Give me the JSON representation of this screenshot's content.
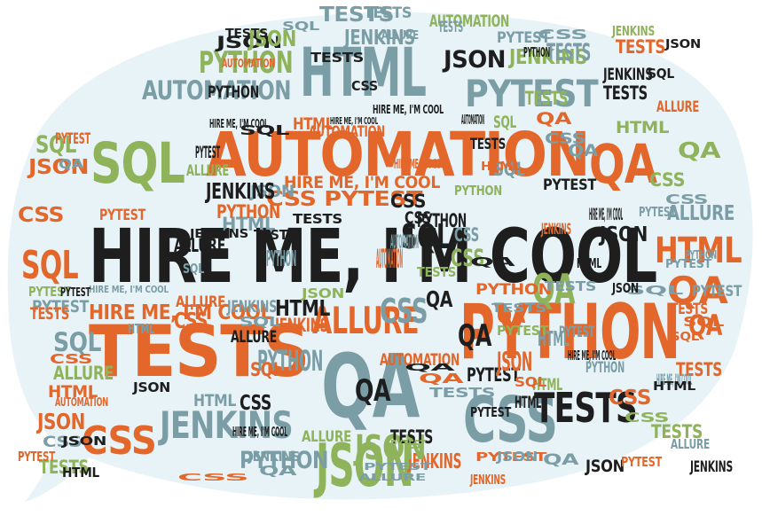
{
  "colors": {
    "bubble": "#e8f3f8",
    "black": "#1e1e1e",
    "orange": "#e3672a",
    "slate": "#7b9ea6",
    "green": "#8fb35a"
  },
  "words": [
    {
      "text": "HIRE ME, I'M COOL",
      "color": "black"
    },
    {
      "text": "AUTOMATION",
      "color": "orange"
    },
    {
      "text": "PYTHON",
      "color": "orange"
    },
    {
      "text": "TESTS",
      "color": "orange"
    },
    {
      "text": "HTML",
      "color": "slate"
    },
    {
      "text": "SQL",
      "color": "green"
    },
    {
      "text": "QA",
      "color": "slate"
    },
    {
      "text": "JSON",
      "color": "green"
    },
    {
      "text": "CSS",
      "color": "slate"
    },
    {
      "text": "JENKINS",
      "color": "slate"
    },
    {
      "text": "PYTEST",
      "color": "slate"
    },
    {
      "text": "QA",
      "color": "orange"
    },
    {
      "text": "HTML",
      "color": "orange"
    },
    {
      "text": "JSON",
      "color": "black"
    },
    {
      "text": "CSS",
      "color": "orange"
    },
    {
      "text": "SQL",
      "color": "orange"
    },
    {
      "text": "TESTS",
      "color": "black"
    },
    {
      "text": "ALLURE",
      "color": "orange"
    },
    {
      "text": "HIRE ME, I'M COOL",
      "color": "orange"
    },
    {
      "text": "CSS PYTEST",
      "color": "orange"
    },
    {
      "text": "HIRE ME, I'M COOL",
      "color": "orange"
    },
    {
      "text": "PYTHON",
      "color": "green"
    },
    {
      "text": "AUTOMATION",
      "color": "slate"
    },
    {
      "text": "JENKINS",
      "color": "green"
    },
    {
      "text": "JSON",
      "color": "slate"
    },
    {
      "text": "ALLURE",
      "color": "slate"
    },
    {
      "text": "SQL",
      "color": "green"
    },
    {
      "text": "QA",
      "color": "green"
    },
    {
      "text": "QA",
      "color": "orange"
    },
    {
      "text": "CSS",
      "color": "slate"
    },
    {
      "text": "JSON",
      "color": "black"
    },
    {
      "text": "JENKINS",
      "color": "black"
    },
    {
      "text": "TESTS",
      "color": "slate"
    },
    {
      "text": "PYTHON",
      "color": "slate"
    },
    {
      "text": "AUTOMATION",
      "color": "orange"
    },
    {
      "text": "ALLURE",
      "color": "green"
    },
    {
      "text": "SQL",
      "color": "slate"
    },
    {
      "text": "PYTEST",
      "color": "slate"
    },
    {
      "text": "CSS",
      "color": "orange"
    },
    {
      "text": "JSON",
      "color": "orange"
    },
    {
      "text": "HTML",
      "color": "slate"
    },
    {
      "text": "JENKINS",
      "color": "orange"
    },
    {
      "text": "HTML",
      "color": "black"
    },
    {
      "text": "TESTS",
      "color": "green"
    },
    {
      "text": "ALLURE",
      "color": "black"
    },
    {
      "text": "PYTHON",
      "color": "slate"
    },
    {
      "text": "SQL",
      "color": "black"
    },
    {
      "text": "PYTEST",
      "color": "black"
    },
    {
      "text": "JSON",
      "color": "green"
    },
    {
      "text": "CSS",
      "color": "green"
    },
    {
      "text": "QA",
      "color": "black"
    },
    {
      "text": "QA",
      "color": "green"
    },
    {
      "text": "JENKINS",
      "color": "orange"
    },
    {
      "text": "TESTS",
      "color": "orange"
    },
    {
      "text": "JSON",
      "color": "black"
    },
    {
      "text": "ALLURE",
      "color": "green"
    },
    {
      "text": "HIRE ME, I'M COOL",
      "color": "black"
    },
    {
      "text": "AUTOMATION",
      "color": "green"
    },
    {
      "text": "HIRE ME, I'M COOL",
      "color": "slate"
    },
    {
      "text": "HIRE ME, I'M COOL",
      "color": "black"
    },
    {
      "text": "PYTEST",
      "color": "orange"
    },
    {
      "text": "PYTHON",
      "color": "black"
    },
    {
      "text": "TESTS",
      "color": "black"
    },
    {
      "text": "CSS",
      "color": "black"
    },
    {
      "text": "QA",
      "color": "black"
    },
    {
      "text": "JSON",
      "color": "orange"
    },
    {
      "text": "CSS",
      "color": "orange"
    },
    {
      "text": "TESTS",
      "color": "slate"
    },
    {
      "text": "HTML",
      "color": "slate"
    },
    {
      "text": "SQL",
      "color": "slate"
    },
    {
      "text": "PYTEST",
      "color": "green"
    },
    {
      "text": "QA",
      "color": "orange"
    },
    {
      "text": "TESTS",
      "color": "green"
    },
    {
      "text": "JENKINS",
      "color": "slate"
    },
    {
      "text": "HTML",
      "color": "green"
    },
    {
      "text": "CSS",
      "color": "orange"
    },
    {
      "text": "SQL",
      "color": "slate"
    },
    {
      "text": "PYTHON",
      "color": "orange"
    },
    {
      "text": "ALLURE",
      "color": "black"
    },
    {
      "text": "JSON",
      "color": "orange"
    },
    {
      "text": "SQL",
      "color": "green"
    },
    {
      "text": "QA",
      "color": "slate"
    },
    {
      "text": "TESTS",
      "color": "black"
    },
    {
      "text": "HTML",
      "color": "black"
    },
    {
      "text": "PYTEST",
      "color": "black"
    },
    {
      "text": "QA",
      "color": "black"
    },
    {
      "text": "CSS",
      "color": "black"
    },
    {
      "text": "SQL",
      "color": "orange"
    },
    {
      "text": "TESTS",
      "color": "orange"
    },
    {
      "text": "HTML",
      "color": "orange"
    },
    {
      "text": "JSON",
      "color": "black"
    },
    {
      "text": "PYTEST",
      "color": "orange"
    },
    {
      "text": "ALLURE",
      "color": "orange"
    },
    {
      "text": "HTML",
      "color": "orange"
    },
    {
      "text": "PYTHON",
      "color": "black"
    },
    {
      "text": "TESTS",
      "color": "black"
    },
    {
      "text": "PYTEST",
      "color": "slate"
    },
    {
      "text": "PYTEST",
      "color": "black"
    },
    {
      "text": "QA",
      "color": "black"
    },
    {
      "text": "CSS",
      "color": "slate"
    },
    {
      "text": "QA",
      "color": "orange"
    },
    {
      "text": "PYTHON",
      "color": "slate"
    },
    {
      "text": "JENKINS",
      "color": "slate"
    },
    {
      "text": "HIRE ME, I'M COOL",
      "color": "black"
    },
    {
      "text": "PYTHON",
      "color": "orange"
    },
    {
      "text": "JSON",
      "color": "green"
    },
    {
      "text": "TESTS",
      "color": "green"
    },
    {
      "text": "QA",
      "color": "slate"
    },
    {
      "text": "CSS",
      "color": "green"
    },
    {
      "text": "HTML",
      "color": "green"
    },
    {
      "text": "CSS",
      "color": "slate"
    },
    {
      "text": "AUTOMATION",
      "color": "orange"
    },
    {
      "text": "TESTS",
      "color": "slate"
    },
    {
      "text": "HTML",
      "color": "slate"
    },
    {
      "text": "CSS",
      "color": "black"
    },
    {
      "text": "AUTOMATION",
      "color": "slate"
    },
    {
      "text": "HIRE ME, I'M COOL",
      "color": "black"
    },
    {
      "text": "PYTEST",
      "color": "slate"
    },
    {
      "text": "SQL",
      "color": "orange"
    },
    {
      "text": "HTML",
      "color": "slate"
    },
    {
      "text": "TESTS",
      "color": "orange"
    },
    {
      "text": "HIRE ME, I'M COOL",
      "color": "slate"
    },
    {
      "text": "ALLURE",
      "color": "slate"
    },
    {
      "text": "PYTEST",
      "color": "slate"
    },
    {
      "text": "TESTS",
      "color": "black"
    },
    {
      "text": "JENKINS",
      "color": "black"
    },
    {
      "text": "PYTHON",
      "color": "slate"
    },
    {
      "text": "HIRE ME, I'M COOL",
      "color": "black"
    },
    {
      "text": "PYTEST",
      "color": "orange"
    },
    {
      "text": "SQL",
      "color": "slate"
    },
    {
      "text": "ALLURE",
      "color": "slate"
    },
    {
      "text": "PYTEST",
      "color": "black"
    },
    {
      "text": "JSON",
      "color": "black"
    },
    {
      "text": "TESTS",
      "color": "black"
    },
    {
      "text": "HTML",
      "color": "black"
    },
    {
      "text": "TESTS",
      "color": "slate"
    },
    {
      "text": "ALLURE",
      "color": "green"
    },
    {
      "text": "PYTEST",
      "color": "slate"
    },
    {
      "text": "ALLURE",
      "color": "orange"
    },
    {
      "text": "PYTEST",
      "color": "green"
    },
    {
      "text": "PYTHON",
      "color": "slate"
    },
    {
      "text": "PYTEST",
      "color": "orange"
    },
    {
      "text": "QA",
      "color": "black"
    },
    {
      "text": "TESTS",
      "color": "orange"
    },
    {
      "text": "QA",
      "color": "slate"
    },
    {
      "text": "SQL",
      "color": "slate"
    },
    {
      "text": "ALLURE",
      "color": "slate"
    },
    {
      "text": "PYTEST",
      "color": "slate"
    },
    {
      "text": "TESTS",
      "color": "black"
    },
    {
      "text": "AUTOMATION",
      "color": "black"
    },
    {
      "text": "CSS",
      "color": "green"
    },
    {
      "text": "HTML",
      "color": "black"
    },
    {
      "text": "JSON",
      "color": "black"
    },
    {
      "text": "HIRE ME, I'M COOL",
      "color": "orange"
    },
    {
      "text": "AUTOMATION",
      "color": "orange"
    },
    {
      "text": "JENKINS",
      "color": "black"
    },
    {
      "text": "JENKINS",
      "color": "slate"
    },
    {
      "text": "JSON",
      "color": "black"
    },
    {
      "text": "CSS",
      "color": "slate"
    },
    {
      "text": "PYTHON",
      "color": "green"
    },
    {
      "text": "JENKINS",
      "color": "green"
    },
    {
      "text": "JENKINS",
      "color": "orange"
    },
    {
      "text": "CSS",
      "color": "slate"
    },
    {
      "text": "PYTEST",
      "color": "black"
    },
    {
      "text": "AUTOMATION",
      "color": "orange"
    },
    {
      "text": "TESTS",
      "color": "slate"
    },
    {
      "text": "SQL",
      "color": "black"
    },
    {
      "text": "CSS",
      "color": "slate"
    },
    {
      "text": "QA",
      "color": "slate"
    },
    {
      "text": "QA",
      "color": "orange"
    },
    {
      "text": "SQL",
      "color": "orange"
    },
    {
      "text": "JSON",
      "color": "green"
    },
    {
      "text": "PYTEST",
      "color": "green"
    },
    {
      "text": "CSS",
      "color": "black"
    },
    {
      "text": "AUTOMATION",
      "color": "orange"
    },
    {
      "text": "PYTHON",
      "color": "black"
    },
    {
      "text": "CSS",
      "color": "orange"
    },
    {
      "text": "SQL",
      "color": "black"
    },
    {
      "text": "JSON",
      "color": "black"
    },
    {
      "text": "TESTS",
      "color": "slate"
    },
    {
      "text": "JENKINS",
      "color": "black"
    },
    {
      "text": "QA",
      "color": "orange"
    },
    {
      "text": "TESTS",
      "color": "slate"
    },
    {
      "text": "TESTS",
      "color": "black"
    },
    {
      "text": "HTML",
      "color": "orange"
    },
    {
      "text": "HTML",
      "color": "black"
    },
    {
      "text": "PYTEST",
      "color": "orange"
    },
    {
      "text": "PYTEST",
      "color": "slate"
    },
    {
      "text": "SQL",
      "color": "slate"
    },
    {
      "text": "JENKINS",
      "color": "orange"
    },
    {
      "text": "HIRE ME, I'M COOL",
      "color": "black"
    },
    {
      "text": "JSON",
      "color": "slate"
    },
    {
      "text": "TESTS",
      "color": "green"
    },
    {
      "text": "CSS",
      "color": "orange"
    },
    {
      "text": "SQL",
      "color": "orange"
    }
  ]
}
